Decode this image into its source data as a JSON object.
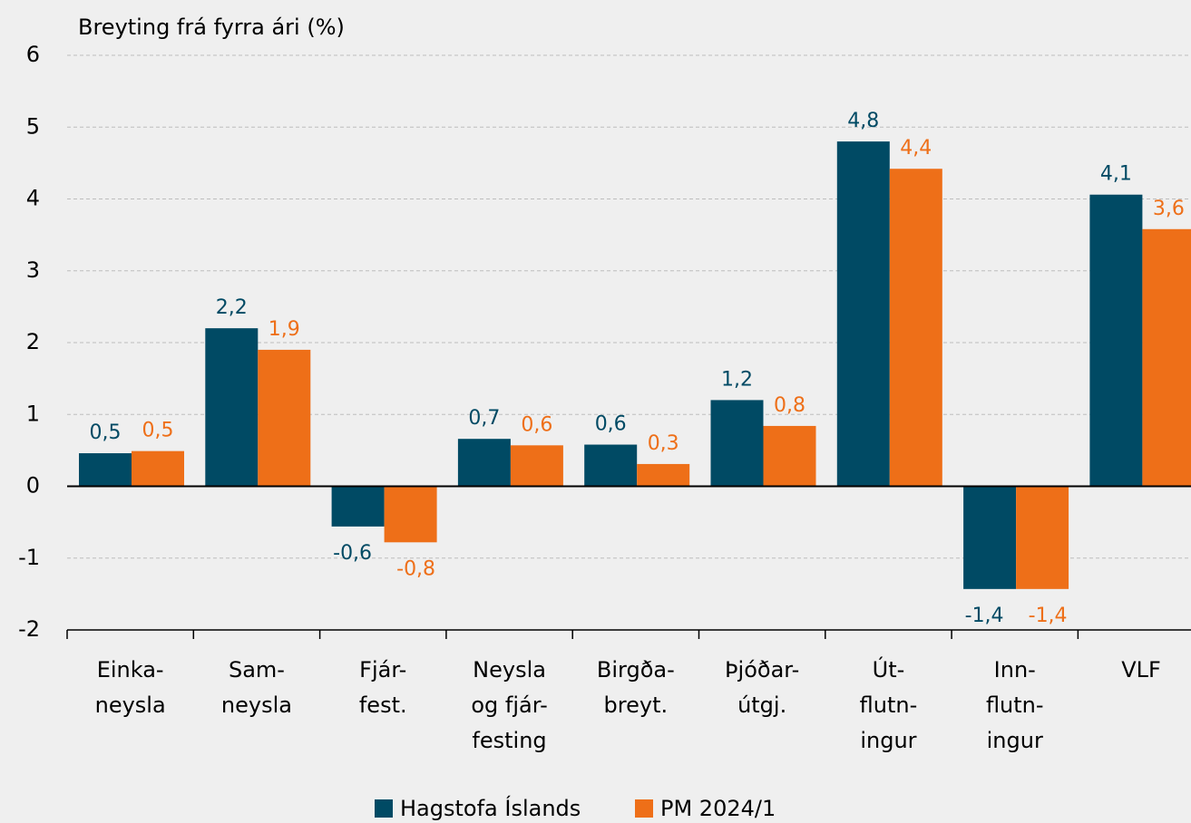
{
  "chart_data": {
    "type": "bar",
    "y_label": "Breyting frá fyrra ári (%)",
    "categories": [
      [
        "Einka-",
        "neysla"
      ],
      [
        "Sam-",
        "neysla"
      ],
      [
        "Fjár-",
        "fest."
      ],
      [
        "Neysla",
        "og fjár-",
        "festing"
      ],
      [
        "Birgða-",
        "breyt."
      ],
      [
        "Þjóðar-",
        "útgj."
      ],
      [
        "Út-",
        "flutn-",
        "ingur"
      ],
      [
        "Inn-",
        "flutn-",
        "ingur"
      ],
      [
        "VLF"
      ]
    ],
    "series": [
      {
        "name": "Hagstofa Íslands",
        "color": "#004a64",
        "values": [
          0.46,
          2.2,
          -0.56,
          0.66,
          0.58,
          1.2,
          4.8,
          -1.43,
          4.06
        ],
        "value_labels": [
          "0,5",
          "2,2",
          "-0,6",
          "0,7",
          "0,6",
          "1,2",
          "4,8",
          "-1,4",
          "4,1"
        ]
      },
      {
        "name": "PM 2024/1",
        "color": "#ee6f18",
        "values": [
          0.49,
          1.9,
          -0.78,
          0.57,
          0.31,
          0.84,
          4.42,
          -1.43,
          3.58
        ],
        "value_labels": [
          "0,5",
          "1,9",
          "-0,8",
          "0,6",
          "0,3",
          "0,8",
          "4,4",
          "-1,4",
          "3,6"
        ]
      }
    ],
    "ylim": [
      -2,
      6
    ],
    "yticks": [
      -2,
      -1,
      0,
      1,
      2,
      3,
      4,
      5,
      6
    ],
    "grid": true,
    "legend": "bottom"
  }
}
